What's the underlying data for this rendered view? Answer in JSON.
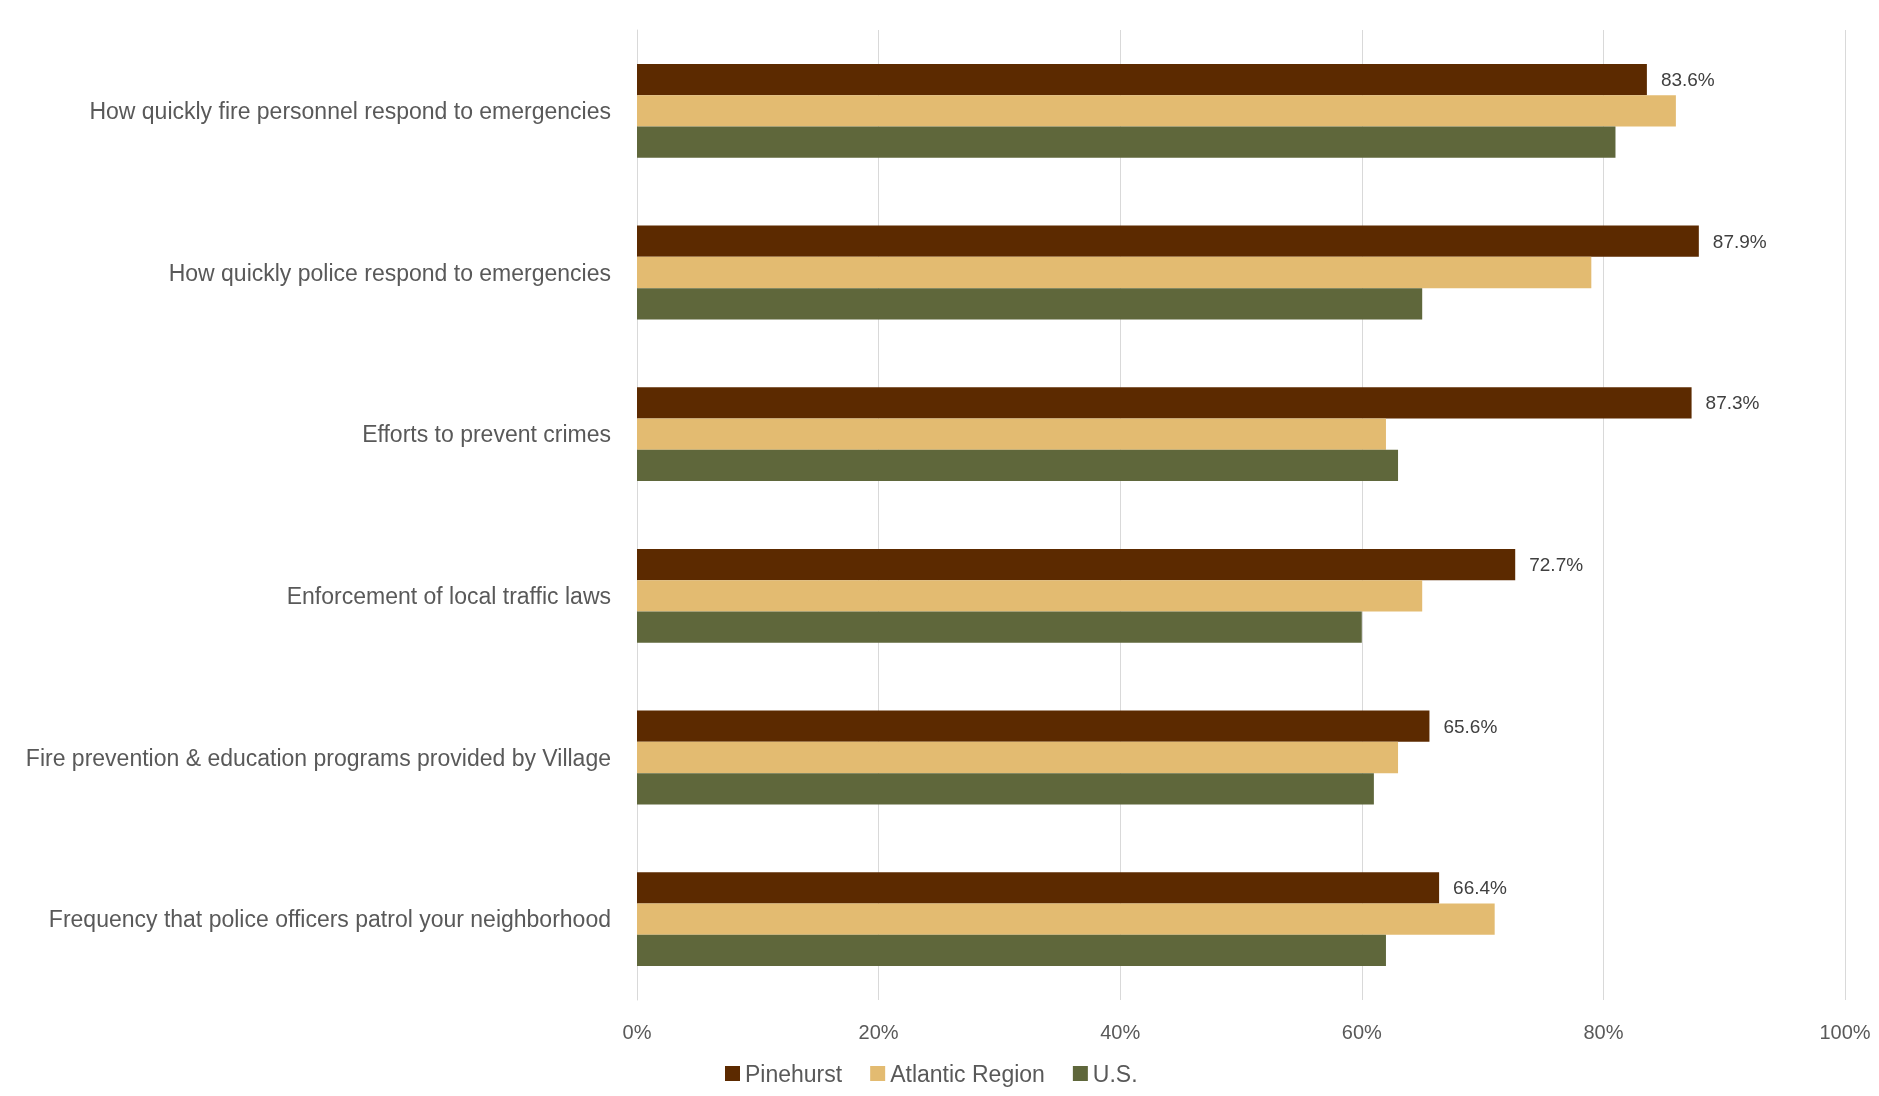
{
  "chart_data": {
    "type": "bar",
    "orientation": "horizontal",
    "categories": [
      "How quickly fire personnel respond to emergencies",
      "How quickly police respond to emergencies",
      "Efforts to prevent crimes",
      "Enforcement of local traffic laws",
      "Fire prevention & education programs provided by Village",
      "Frequency that police officers patrol your neighborhood"
    ],
    "series": [
      {
        "name": "Pinehurst",
        "color": "#5c2a00",
        "values": [
          83.6,
          87.9,
          87.3,
          72.7,
          65.6,
          66.4
        ],
        "value_labels": [
          "83.6%",
          "87.9%",
          "87.3%",
          "72.7%",
          "65.6%",
          "66.4%"
        ]
      },
      {
        "name": "Atlantic Region",
        "color": "#e3bb71",
        "values": [
          86,
          79,
          62,
          65,
          63,
          71
        ]
      },
      {
        "name": "U.S.",
        "color": "#5f673b",
        "values": [
          81,
          65,
          63,
          60,
          61,
          62
        ]
      }
    ],
    "xlim": [
      0,
      100
    ],
    "xticks": [
      {
        "value": 0,
        "label": "0%"
      },
      {
        "value": 20,
        "label": "20%"
      },
      {
        "value": 40,
        "label": "40%"
      },
      {
        "value": 60,
        "label": "60%"
      },
      {
        "value": 80,
        "label": "80%"
      },
      {
        "value": 100,
        "label": "100%"
      }
    ],
    "grid": "x",
    "legend": "bottom"
  }
}
